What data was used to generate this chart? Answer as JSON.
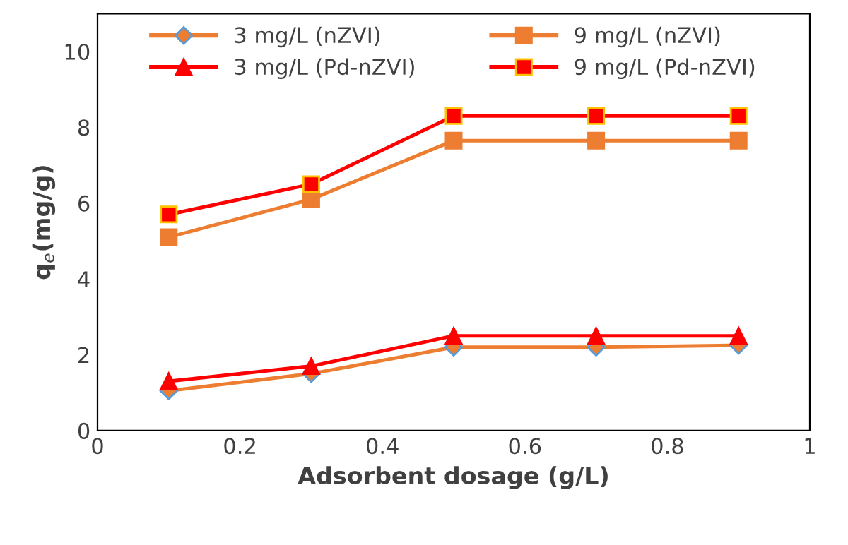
{
  "chart_data": {
    "type": "line",
    "xlabel": "Adsorbent dosage (g/L)",
    "ylabel": "q$_{e}$(mg/g)",
    "x": [
      0.1,
      0.3,
      0.5,
      0.7,
      0.9
    ],
    "xlim": [
      0,
      1
    ],
    "xticks": [
      0,
      0.2,
      0.4,
      0.6,
      0.8,
      1
    ],
    "ylim": [
      0,
      11
    ],
    "yticks": [
      0,
      2,
      4,
      6,
      8,
      10
    ],
    "grid": false,
    "legend": "top",
    "line_style": "solid",
    "series": [
      {
        "name": "3 mg/L (nZVI)",
        "color": "#ed7d31",
        "marker": "diamond",
        "values": [
          1.05,
          1.5,
          2.2,
          2.2,
          2.25
        ]
      },
      {
        "name": "9 mg/L (nZVI)",
        "color": "#ed7d31",
        "marker": "square",
        "values": [
          5.1,
          6.1,
          7.65,
          7.65,
          7.65
        ]
      },
      {
        "name": "3 mg/L (Pd-nZVI)",
        "color": "#ff0000",
        "marker": "triangle",
        "values": [
          1.3,
          1.7,
          2.5,
          2.5,
          2.5
        ]
      },
      {
        "name": "9 mg/L (Pd-nZVI)",
        "color": "#ff0000",
        "marker": "square",
        "values": [
          5.7,
          6.5,
          8.3,
          8.3,
          8.3
        ]
      }
    ]
  }
}
